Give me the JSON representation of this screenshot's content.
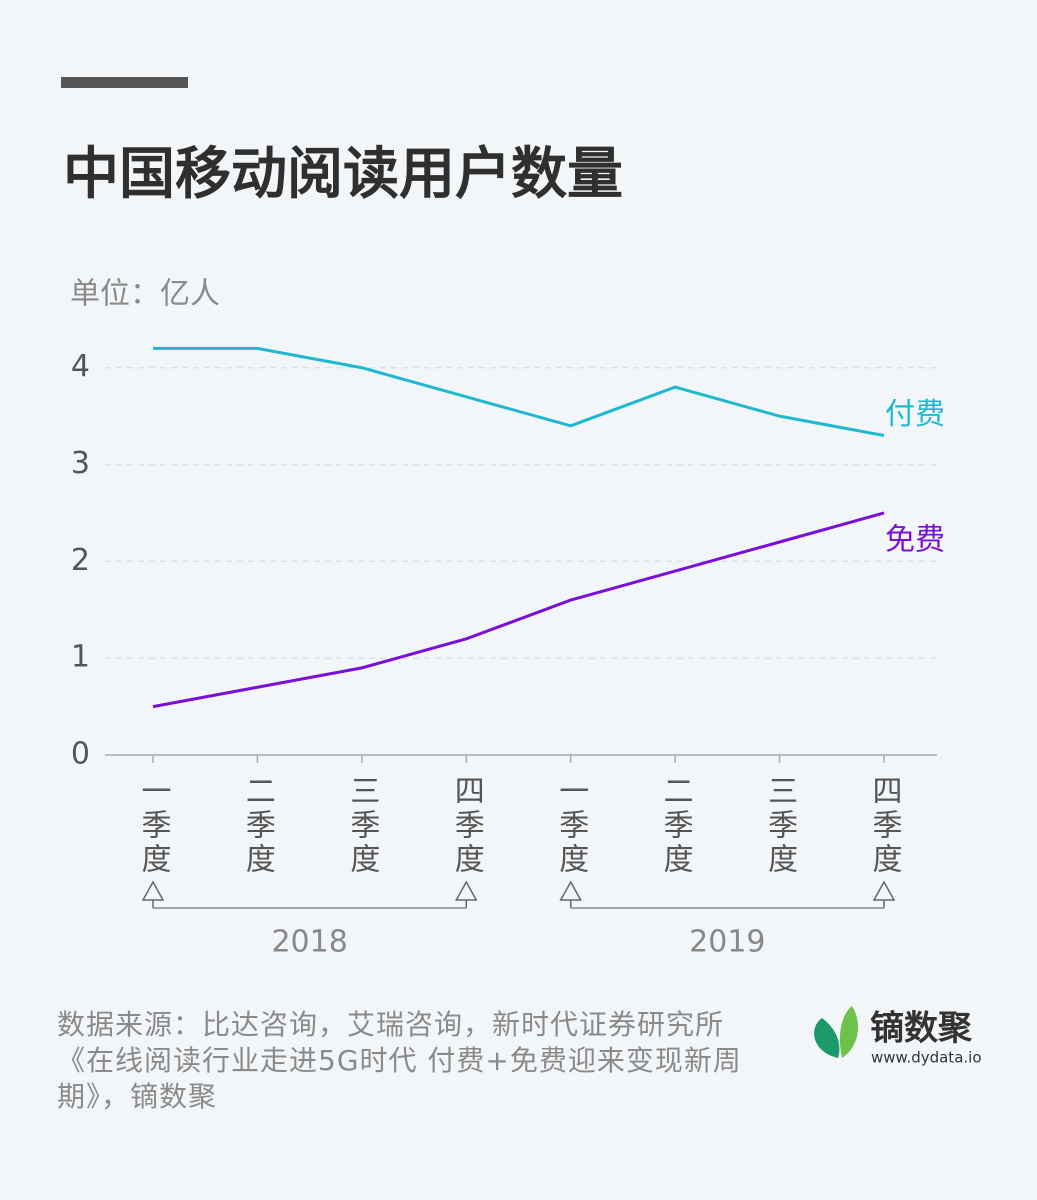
{
  "chart_data": {
    "type": "line",
    "title": "中国移动阅读用户数量",
    "y_label": "单位：亿人",
    "categories": [
      "一季度",
      "二季度",
      "三季度",
      "四季度",
      "一季度",
      "二季度",
      "三季度",
      "四季度"
    ],
    "groups": [
      {
        "label": "2018",
        "from": 0,
        "to": 3
      },
      {
        "label": "2019",
        "from": 4,
        "to": 7
      }
    ],
    "series": [
      {
        "name": "付费",
        "color": "#1fb8d0",
        "values": [
          4.2,
          4.2,
          4.0,
          3.7,
          3.4,
          3.8,
          3.5,
          3.3
        ]
      },
      {
        "name": "免费",
        "color": "#7a10d8",
        "values": [
          0.5,
          0.7,
          0.9,
          1.2,
          1.6,
          1.9,
          2.2,
          2.5
        ]
      }
    ],
    "ylim": [
      0,
      4.4
    ],
    "yticks": [
      0,
      1,
      2,
      3,
      4
    ],
    "grid": true
  },
  "source": "数据来源：比达咨询，艾瑞咨询，新时代证券研究所《在线阅读行业走进5G时代 付费+免费迎来变现新周期》，镝数聚",
  "logo": {
    "name": "镝数聚",
    "url": "www.dydata.io"
  }
}
